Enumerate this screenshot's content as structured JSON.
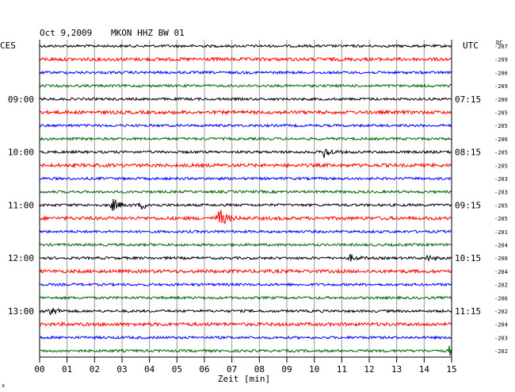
{
  "header": {
    "date": "Oct 9,2009",
    "station": "MKON HHZ BW 01",
    "left_tz": "CES",
    "right_tz": "UTC",
    "dc_label": "DC"
  },
  "xaxis": {
    "label": "Zeit [min]",
    "ticks": [
      "00",
      "01",
      "02",
      "03",
      "04",
      "05",
      "06",
      "07",
      "08",
      "09",
      "10",
      "11",
      "12",
      "13",
      "14",
      "15"
    ]
  },
  "left_times": [
    "09:00",
    "10:00",
    "11:00",
    "12:00",
    "13:00"
  ],
  "right_times": [
    "07:15",
    "08:15",
    "09:15",
    "10:15",
    "11:15"
  ],
  "footer_mark": "x",
  "chart_data": {
    "type": "line",
    "title": "Oct 9,2009   MKON HHZ BW 01",
    "xlabel": "Zeit [min]",
    "xlim": [
      0,
      15
    ],
    "traces_per_hour": 4,
    "trace_count": 24,
    "colors": [
      "#000000",
      "#ff0000",
      "#0000ff",
      "#006600"
    ],
    "dc_offsets": [
      "-207",
      "-209",
      "-206",
      "-209",
      "-200",
      "-205",
      "-205",
      "-206",
      "-205",
      "-205",
      "-203",
      "-203",
      "-205",
      "-205",
      "-201",
      "-204",
      "-200",
      "-204",
      "-202",
      "-206",
      "-202",
      "-204",
      "-203",
      "-202"
    ],
    "events": [
      {
        "trace": 8,
        "minute": 10.3,
        "amp": 9
      },
      {
        "trace": 12,
        "minute": 2.6,
        "amp": 10
      },
      {
        "trace": 12,
        "minute": 3.7,
        "amp": 5
      },
      {
        "trace": 13,
        "minute": 6.5,
        "amp": 14
      },
      {
        "trace": 16,
        "minute": 11.3,
        "amp": 4
      },
      {
        "trace": 16,
        "minute": 14.1,
        "amp": 3
      },
      {
        "trace": 20,
        "minute": 0.3,
        "amp": 8
      },
      {
        "trace": 23,
        "minute": 14.9,
        "amp": 6
      }
    ]
  }
}
